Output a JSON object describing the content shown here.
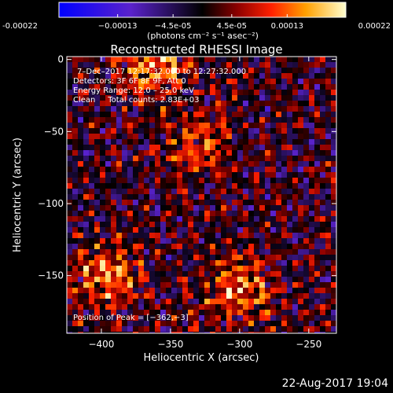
{
  "chart_data": {
    "type": "heatmap",
    "title": "Reconstructed RHESSI Image",
    "xlabel": "Heliocentric X (arcsec)",
    "ylabel": "Heliocentric Y (arcsec)",
    "xlim": [
      -425,
      -230
    ],
    "ylim": [
      -190,
      2
    ],
    "xticks": [
      -400,
      -350,
      -300,
      -250
    ],
    "xtick_labels": [
      "−400",
      "−350",
      "−300",
      "−250"
    ],
    "yticks": [
      0,
      -50,
      -100,
      -150
    ],
    "ytick_labels": [
      "0",
      "−50",
      "−100",
      "−150"
    ],
    "colorbar": {
      "min": -0.00022,
      "max": 0.00022,
      "ticks": [
        -0.00022,
        -0.00013,
        -4.5e-05,
        4.5e-05,
        0.00013,
        0.00022
      ],
      "tick_labels": [
        "-0.00022",
        "−0.00013",
        "−4.5e-05",
        "4.5e-05",
        "0.00013",
        "0.00022"
      ],
      "units": "(photons cm⁻² s⁻¹ asec⁻²)"
    },
    "annotations": [
      "7–Dec–2017 12:17:32.000 to 12:27:32.000",
      "Detectors: 3F 6F 8F 9F, Att 0",
      "Energy Range: 12.0 – 25.0 keV",
      "Clean     Total counts: 2.83E+03",
      "Position of Peak = [−362,−3]"
    ],
    "peak_position": [
      -362,
      -3
    ],
    "bright_sources": [
      {
        "x": -362,
        "y": -3,
        "level": 0.00022
      },
      {
        "x": -395,
        "y": -150,
        "level": 0.00018
      },
      {
        "x": -300,
        "y": -160,
        "level": 0.00018
      },
      {
        "x": -330,
        "y": -60,
        "level": 0.00013
      }
    ]
  },
  "footer": {
    "timestamp": "22-Aug-2017 19:04"
  }
}
